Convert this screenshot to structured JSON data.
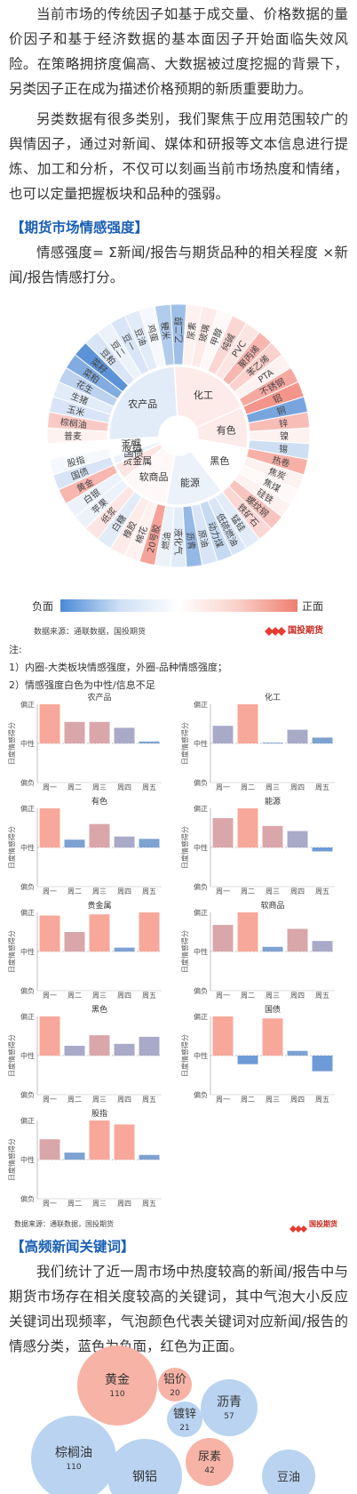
{
  "intro": {
    "p1": "当前市场的传统因子如基于成交量、价格数据的量价因子和基于经济数据的基本面因子开始面临失效风险。在策略拥挤度偏高、大数据被过度挖掘的背景下，另类因子正在成为描述价格预期的新质重要助力。",
    "p2": "另类数据有很多类别，我们聚焦于应用范围较广的舆情因子，通过对新闻、媒体和研报等文本信息进行提炼、加工和分析，不仅可以刻画当前市场热度和情绪，也可以定量把握板块和品种的强弱。"
  },
  "section1": {
    "title": "【期货市场情感强度】",
    "formula": "情感强度= Σ新闻/报告与期货品种的相关程度 ×新闻/报告情感打分。"
  },
  "sunburst": {
    "legend_neg": "负面",
    "legend_pos": "正面",
    "source": "数据来源：通联数据，国投期货",
    "logo": "国投期货",
    "colors": {
      "neg": "#3f7fd0",
      "pos": "#f07b6e",
      "neutral": "#ffffff"
    }
  },
  "notes": {
    "title": "注:",
    "n1": "1）内圈-大类板块情感强度，外圈-品种情感强度；",
    "n2": "2）情感强度白色为中性/信息不足"
  },
  "chart_data": [
    {
      "type": "sunburst",
      "levels": [
        "sector",
        "variety"
      ],
      "sectors": [
        {
          "name": "化工",
          "value": 0.15,
          "varieties": [
            {
              "name": "乙二醇",
              "value": -0.5
            },
            {
              "name": "尿素",
              "value": 0.1
            },
            {
              "name": "玻璃",
              "value": 0.15
            },
            {
              "name": "甲醇",
              "value": 0.05
            },
            {
              "name": "纯碱",
              "value": 0.3
            },
            {
              "name": "PVC",
              "value": 0.2
            },
            {
              "name": "聚丙烯",
              "value": 0.55
            },
            {
              "name": "苯乙烯",
              "value": 0.35
            },
            {
              "name": "PTA",
              "value": 0.1
            },
            {
              "name": "不锈钢",
              "value": 0.65
            }
          ]
        },
        {
          "name": "有色",
          "value": 0.15,
          "varieties": [
            {
              "name": "铝",
              "value": 0.8
            },
            {
              "name": "铜",
              "value": -0.7
            },
            {
              "name": "锌",
              "value": 0.5
            },
            {
              "name": "镍",
              "value": 0.1
            },
            {
              "name": "锡",
              "value": -0.25
            }
          ]
        },
        {
          "name": "黑色",
          "value": 0.0,
          "varieties": [
            {
              "name": "热卷",
              "value": 0.6
            },
            {
              "name": "焦炭",
              "value": 0.1
            },
            {
              "name": "焦煤",
              "value": 0.05
            },
            {
              "name": "硅铁",
              "value": 0.1
            },
            {
              "name": "螺纹钢",
              "value": 0.45
            },
            {
              "name": "铁矿石",
              "value": 0.3
            }
          ]
        },
        {
          "name": "能源",
          "value": -0.1,
          "varieties": [
            {
              "name": "锰硅",
              "value": -0.15
            },
            {
              "name": "低硫燃油",
              "value": -0.2
            },
            {
              "name": "动力煤",
              "value": -0.3
            },
            {
              "name": "原油",
              "value": -0.2
            },
            {
              "name": "沥青",
              "value": -0.55
            },
            {
              "name": "液化气",
              "value": -0.15
            },
            {
              "name": "燃油",
              "value": -0.1
            }
          ]
        },
        {
          "name": "软商品",
          "value": 0.05,
          "varieties": [
            {
              "name": "20号胶",
              "value": 0.7
            },
            {
              "name": "棉花",
              "value": 0.1
            },
            {
              "name": "橡胶",
              "value": 0.15
            },
            {
              "name": "白糖",
              "value": -0.15
            },
            {
              "name": "纸浆",
              "value": 0.2
            },
            {
              "name": "苹果",
              "value": -0.1
            }
          ]
        },
        {
          "name": "贵金属",
          "value": 0.2,
          "varieties": [
            {
              "name": "白银",
              "value": -0.1
            },
            {
              "name": "黄金",
              "value": 0.55
            }
          ]
        },
        {
          "name": "国债",
          "value": -0.1,
          "varieties": [
            {
              "name": "国债",
              "value": -0.2
            }
          ]
        },
        {
          "name": "股指",
          "value": 0.0,
          "varieties": [
            {
              "name": "股指",
              "value": -0.05
            }
          ]
        },
        {
          "name": "金融",
          "value": 0.0,
          "varieties": []
        },
        {
          "name": "农产品",
          "value": -0.15,
          "varieties": [
            {
              "name": "普麦",
              "value": 0.1
            },
            {
              "name": "棕榈油",
              "value": 0.4
            },
            {
              "name": "玉米",
              "value": -0.2
            },
            {
              "name": "生猪",
              "value": -0.15
            },
            {
              "name": "花生",
              "value": -0.35
            },
            {
              "name": "菜粕",
              "value": -0.65
            },
            {
              "name": "菜籽",
              "value": -0.85
            },
            {
              "name": "豆粕",
              "value": -0.2
            },
            {
              "name": "豆二",
              "value": -0.1
            },
            {
              "name": "豆一",
              "value": -0.2
            },
            {
              "name": "豆油",
              "value": -0.15
            },
            {
              "name": "鸡蛋",
              "value": -0.05
            },
            {
              "name": "粳米",
              "value": -0.4
            }
          ]
        }
      ]
    },
    {
      "type": "bar",
      "title": "农产品",
      "categories": [
        "周一",
        "周二",
        "周三",
        "周四",
        "周五"
      ],
      "values": [
        1.0,
        0.55,
        0.55,
        0.4,
        0.05
      ],
      "ylim": [
        -1,
        1
      ],
      "ylabel": "日度情感得分",
      "ytick_labels": [
        "偏正",
        "中性",
        "偏负"
      ]
    },
    {
      "type": "bar",
      "title": "化工",
      "categories": [
        "周一",
        "周二",
        "周三",
        "周四",
        "周五"
      ],
      "values": [
        0.45,
        1.0,
        0.02,
        0.35,
        0.15
      ],
      "ylim": [
        -1,
        1
      ],
      "ylabel": "日度情感得分",
      "ytick_labels": [
        "偏正",
        "中性",
        "偏负"
      ]
    },
    {
      "type": "bar",
      "title": "有色",
      "categories": [
        "周一",
        "周二",
        "周三",
        "周四",
        "周五"
      ],
      "values": [
        1.0,
        0.2,
        0.6,
        0.28,
        0.22
      ],
      "ylim": [
        -1,
        1
      ],
      "ylabel": "日度情感得分",
      "ytick_labels": [
        "偏正",
        "中性",
        "偏负"
      ]
    },
    {
      "type": "bar",
      "title": "能源",
      "categories": [
        "周一",
        "周二",
        "周三",
        "周四",
        "周五"
      ],
      "values": [
        0.75,
        1.0,
        0.55,
        0.42,
        -0.1
      ],
      "ylim": [
        -1,
        1
      ],
      "ylabel": "日度情感得分",
      "ytick_labels": [
        "偏正",
        "中性",
        "偏负"
      ]
    },
    {
      "type": "bar",
      "title": "贵金属",
      "categories": [
        "周一",
        "周二",
        "周三",
        "周四",
        "周五"
      ],
      "values": [
        0.92,
        0.5,
        0.95,
        0.1,
        1.0
      ],
      "ylim": [
        -1,
        1
      ],
      "ylabel": "日度情感得分",
      "ytick_labels": [
        "偏正",
        "中性",
        "偏负"
      ]
    },
    {
      "type": "bar",
      "title": "软商品",
      "categories": [
        "周一",
        "周二",
        "周三",
        "周四",
        "周五"
      ],
      "values": [
        0.68,
        1.0,
        0.12,
        0.58,
        0.27
      ],
      "ylim": [
        -1,
        1
      ],
      "ylabel": "日度情感得分",
      "ytick_labels": [
        "偏正",
        "中性",
        "偏负"
      ]
    },
    {
      "type": "bar",
      "title": "黑色",
      "categories": [
        "周一",
        "周二",
        "周三",
        "周四",
        "周五"
      ],
      "values": [
        1.0,
        0.25,
        0.52,
        0.3,
        0.48
      ],
      "ylim": [
        -1,
        1
      ],
      "ylabel": "日度情感得分",
      "ytick_labels": [
        "偏正",
        "中性",
        "偏负"
      ]
    },
    {
      "type": "bar",
      "title": "国债",
      "categories": [
        "周一",
        "周二",
        "周三",
        "周四",
        "周五"
      ],
      "values": [
        1.0,
        -0.22,
        0.95,
        0.12,
        -0.4
      ],
      "ylim": [
        -1,
        1
      ],
      "ylabel": "日度情感得分",
      "ytick_labels": [
        "偏正",
        "中性",
        "偏负"
      ]
    },
    {
      "type": "bar",
      "title": "股指",
      "categories": [
        "周一",
        "周二",
        "周三",
        "周四",
        "周五"
      ],
      "values": [
        0.52,
        0.18,
        1.0,
        0.9,
        0.12
      ],
      "ylim": [
        -1,
        1
      ],
      "ylabel": "日度情感得分",
      "ytick_labels": [
        "偏正",
        "中性",
        "偏负"
      ]
    },
    {
      "type": "bubble",
      "items": [
        {
          "name": "黄金",
          "value": 110,
          "sentiment": 0.6
        },
        {
          "name": "铝价",
          "value": 20,
          "sentiment": 0.5
        },
        {
          "name": "镀锌",
          "value": 21,
          "sentiment": -0.3
        },
        {
          "name": "沥青",
          "value": 57,
          "sentiment": -0.4
        },
        {
          "name": "棕榈油",
          "value": 110,
          "sentiment": -0.4
        },
        {
          "name": "钢铝",
          "value": null,
          "sentiment": -0.4
        },
        {
          "name": "尿素",
          "value": 42,
          "sentiment": 0.6
        },
        {
          "name": "豆油",
          "value": null,
          "sentiment": -0.3
        }
      ]
    }
  ],
  "bars_source": "数据来源：通联数据，国投期货",
  "bars_logo": "国投期货",
  "section2": {
    "title": "【高频新闻关键词】",
    "p": "我们统计了近一周市场中热度较高的新闻/报告中与期货市场存在相关度较高的关键词，其中气泡大小反应关键词出现频率，气泡颜色代表关键词对应新闻/报告的情感分类，蓝色为负面，红色为正面。"
  }
}
